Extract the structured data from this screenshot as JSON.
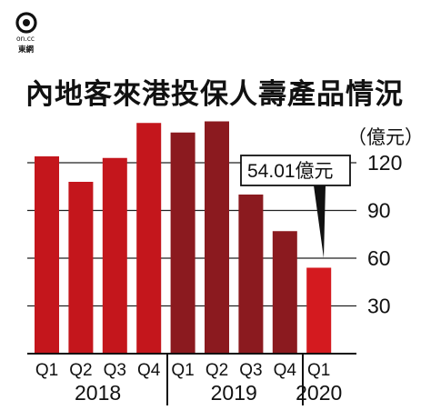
{
  "logo": {
    "brand_text": "on.cc",
    "name": "東網"
  },
  "chart_data": {
    "type": "bar",
    "title": "內地客來港投保人壽產品情況",
    "unit": "（億元）",
    "categories": [
      "Q1",
      "Q2",
      "Q3",
      "Q4",
      "Q1",
      "Q2",
      "Q3",
      "Q4",
      "Q1"
    ],
    "year_groups": [
      {
        "label": "2018",
        "count": 4
      },
      {
        "label": "2019",
        "count": 4
      },
      {
        "label": "2020",
        "count": 1
      }
    ],
    "values": [
      124,
      108,
      123,
      145,
      139,
      146,
      100,
      77,
      54.01
    ],
    "bar_colors": [
      "#c4161c",
      "#c4161c",
      "#c4161c",
      "#c4161c",
      "#8b1a1f",
      "#8b1a1f",
      "#8b1a1f",
      "#8b1a1f",
      "#d41a1f"
    ],
    "y_ticks": [
      30,
      60,
      90,
      120
    ],
    "ylim": [
      0,
      150
    ],
    "grid": true,
    "callout": {
      "text": "54.01億元",
      "bar_index": 8
    }
  }
}
